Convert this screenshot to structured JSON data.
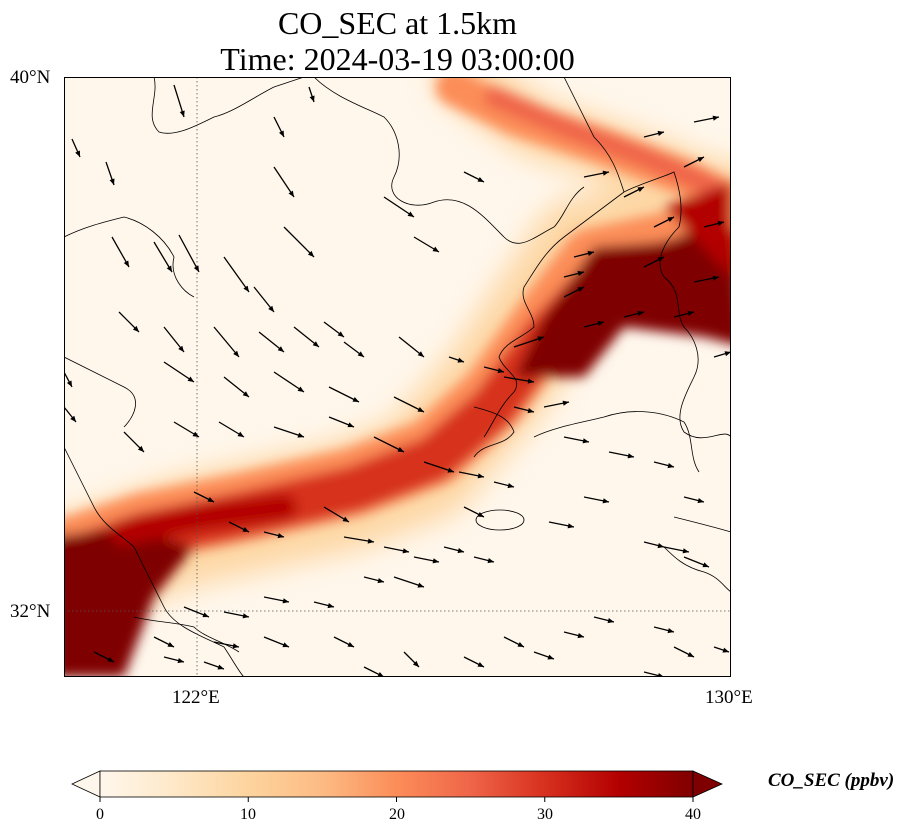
{
  "title": {
    "line1": "CO_SEC at 1.5km",
    "line2": "Time: 2024-03-19 03:00:00"
  },
  "map": {
    "lon_range": [
      120,
      130
    ],
    "lat_range": [
      31,
      40
    ],
    "lon_ticks": [
      {
        "value": 122,
        "label": "122°E"
      },
      {
        "value": 130,
        "label": "130°E"
      }
    ],
    "lat_ticks": [
      {
        "value": 40,
        "label": "40°N"
      },
      {
        "value": 32,
        "label": "32°N"
      }
    ],
    "gridlines": true,
    "plume_color_max": "#7f0000"
  },
  "colorbar": {
    "label": "CO_SEC (ppbv)",
    "min": 0,
    "max": 40,
    "ticks": [
      {
        "value": 0,
        "label": "0"
      },
      {
        "value": 10,
        "label": "10"
      },
      {
        "value": 20,
        "label": "20"
      },
      {
        "value": 30,
        "label": "30"
      },
      {
        "value": 40,
        "label": "40"
      }
    ],
    "extend": "both",
    "colormap": [
      "#fff7ec",
      "#fee8c8",
      "#fdd49e",
      "#fdbb84",
      "#fc8d59",
      "#ef6548",
      "#d7301f",
      "#b30000",
      "#7f0000"
    ]
  }
}
